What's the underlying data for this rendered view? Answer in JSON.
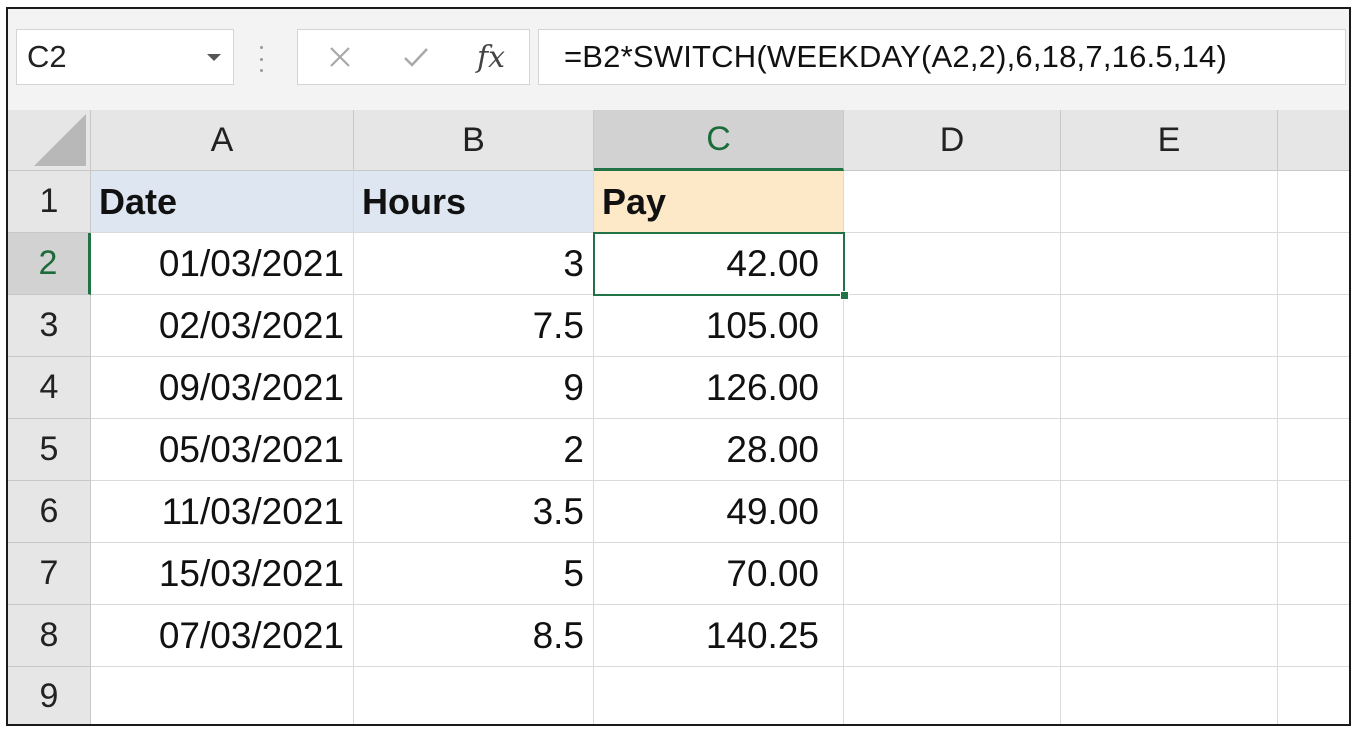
{
  "name_box": {
    "value": "C2"
  },
  "formula_bar": {
    "cancel_icon": "close-x-icon",
    "enter_icon": "checkmark-icon",
    "fx_label": "fx",
    "formula": "=B2*SWITCH(WEEKDAY(A2,2),6,18,7,16.5,14)"
  },
  "sheet": {
    "columns": [
      "A",
      "B",
      "C",
      "D",
      "E"
    ],
    "selected_column": "C",
    "selected_row": 2,
    "rows": [
      {
        "num": "1",
        "cells": [
          "Date",
          "Hours",
          "Pay",
          "",
          ""
        ]
      },
      {
        "num": "2",
        "cells": [
          "01/03/2021",
          "3",
          "42.00",
          "",
          ""
        ]
      },
      {
        "num": "3",
        "cells": [
          "02/03/2021",
          "7.5",
          "105.00",
          "",
          ""
        ]
      },
      {
        "num": "4",
        "cells": [
          "09/03/2021",
          "9",
          "126.00",
          "",
          ""
        ]
      },
      {
        "num": "5",
        "cells": [
          "05/03/2021",
          "2",
          "28.00",
          "",
          ""
        ]
      },
      {
        "num": "6",
        "cells": [
          "11/03/2021",
          "3.5",
          "49.00",
          "",
          ""
        ]
      },
      {
        "num": "7",
        "cells": [
          "15/03/2021",
          "5",
          "70.00",
          "",
          ""
        ]
      },
      {
        "num": "8",
        "cells": [
          "07/03/2021",
          "8.5",
          "140.25",
          "",
          ""
        ]
      },
      {
        "num": "9",
        "cells": [
          "",
          "",
          "",
          "",
          ""
        ]
      }
    ]
  },
  "colors": {
    "accent_green": "#217346",
    "header_blue_fill": "#dde6f1",
    "header_tan_fill": "#fde8c7"
  }
}
